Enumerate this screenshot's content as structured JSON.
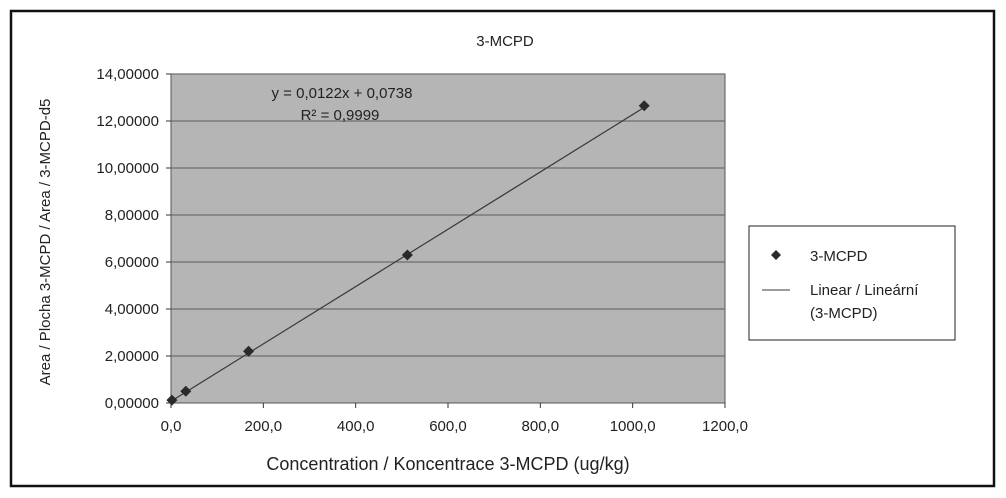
{
  "chart_data": {
    "type": "scatter",
    "title": "3-MCPD",
    "xlabel": "Concentration / Koncentrace 3-MCPD (ug/kg)",
    "ylabel": "Area / Plocha 3-MCPD / Area / 3-MCPD-d5",
    "xlim": [
      0,
      1200
    ],
    "ylim": [
      0,
      14
    ],
    "x_ticks": [
      0,
      200,
      400,
      600,
      800,
      1000,
      1200
    ],
    "x_tick_labels": [
      "0,0",
      "200,0",
      "400,0",
      "600,0",
      "800,0",
      "1000,0",
      "1200,0"
    ],
    "y_ticks": [
      0,
      2,
      4,
      6,
      8,
      10,
      12,
      14
    ],
    "y_tick_labels": [
      "0,00000",
      "2,00000",
      "4,00000",
      "6,00000",
      "8,00000",
      "10,00000",
      "12,00000",
      "14,00000"
    ],
    "grid": "horizontal",
    "series": [
      {
        "name": "3-MCPD",
        "marker": "diamond",
        "x": [
          2,
          32,
          168,
          512,
          1025
        ],
        "y": [
          0.12,
          0.5,
          2.2,
          6.3,
          12.65
        ]
      }
    ],
    "trendline": {
      "name": "Linear / Lineární (3-MCPD)",
      "slope": 0.0122,
      "intercept": 0.0738,
      "x_range": [
        0,
        1025
      ]
    },
    "annotations": {
      "equation": "y = 0,0122x + 0,0738",
      "r_squared": "R² = 0,9999"
    },
    "legend": {
      "position": "right",
      "entries": [
        "3-MCPD",
        "Linear / Lineární",
        "(3-MCPD)"
      ]
    },
    "colors": {
      "plot_bg": "#b5b5b5",
      "grid": "#6e6e6e",
      "marker": "#2a2a2a",
      "line": "#3a3a3a"
    }
  }
}
